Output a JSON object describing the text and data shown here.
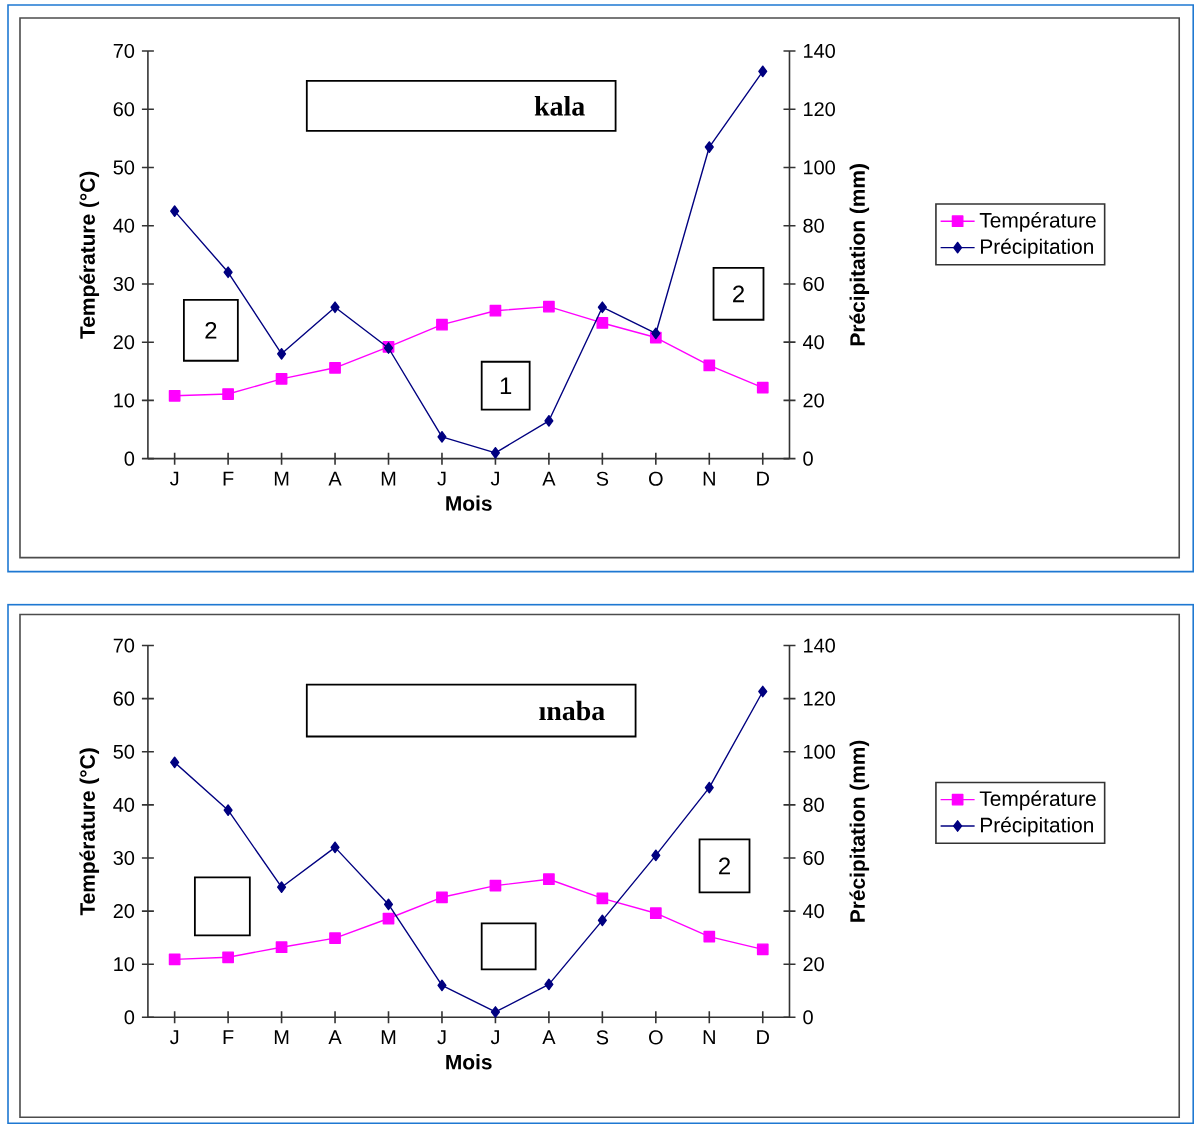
{
  "chart_data": [
    {
      "type": "line",
      "categories": [
        "J",
        "F",
        "M",
        "A",
        "M",
        "J",
        "J",
        "A",
        "S",
        "O",
        "N",
        "D"
      ],
      "series": [
        {
          "name": "Température",
          "color": "#ff00ff",
          "marker": "square",
          "values": [
            10.8,
            11.1,
            13.7,
            15.6,
            19.2,
            23.0,
            25.4,
            26.1,
            23.3,
            20.8,
            16.0,
            12.2
          ]
        },
        {
          "name": "Précipitation",
          "color": "#000080",
          "marker": "diamond",
          "axis": "y2",
          "values": [
            85,
            64,
            36,
            52,
            38,
            7.5,
            2,
            13,
            52,
            43,
            107,
            133
          ]
        }
      ],
      "ylim": [
        0,
        70
      ],
      "yticks": [
        0,
        10,
        20,
        30,
        40,
        50,
        60,
        70
      ],
      "y2lim": [
        0,
        140
      ],
      "y2ticks": [
        0,
        20,
        40,
        60,
        80,
        100,
        120,
        140
      ],
      "xlabel": "Mois",
      "ylabel": "Température (°C)",
      "y2label": "Précipitation (mm)",
      "legend": "right",
      "annotations": [
        "kala",
        "2",
        "1",
        "2"
      ]
    },
    {
      "type": "line",
      "categories": [
        "J",
        "F",
        "M",
        "A",
        "M",
        "J",
        "J",
        "A",
        "S",
        "O",
        "N",
        "D"
      ],
      "series": [
        {
          "name": "Température",
          "color": "#ff00ff",
          "marker": "square",
          "values": [
            10.9,
            11.3,
            13.2,
            14.9,
            18.6,
            22.6,
            24.8,
            26.0,
            22.4,
            19.6,
            15.2,
            12.8
          ]
        },
        {
          "name": "Précipitation",
          "color": "#000080",
          "marker": "diamond",
          "axis": "y2",
          "values": [
            96,
            78,
            49,
            64,
            42.5,
            12,
            2,
            12.4,
            36.5,
            61,
            86.5,
            122.7
          ]
        }
      ],
      "ylim": [
        0,
        70
      ],
      "yticks": [
        0,
        10,
        20,
        30,
        40,
        50,
        60,
        70
      ],
      "y2lim": [
        0,
        140
      ],
      "y2ticks": [
        0,
        20,
        40,
        60,
        80,
        100,
        120,
        140
      ],
      "xlabel": "Mois",
      "ylabel": "Température (°C)",
      "y2label": "Précipitation (mm)",
      "legend": "right",
      "annotations": [
        "ınaba",
        "2"
      ]
    }
  ]
}
